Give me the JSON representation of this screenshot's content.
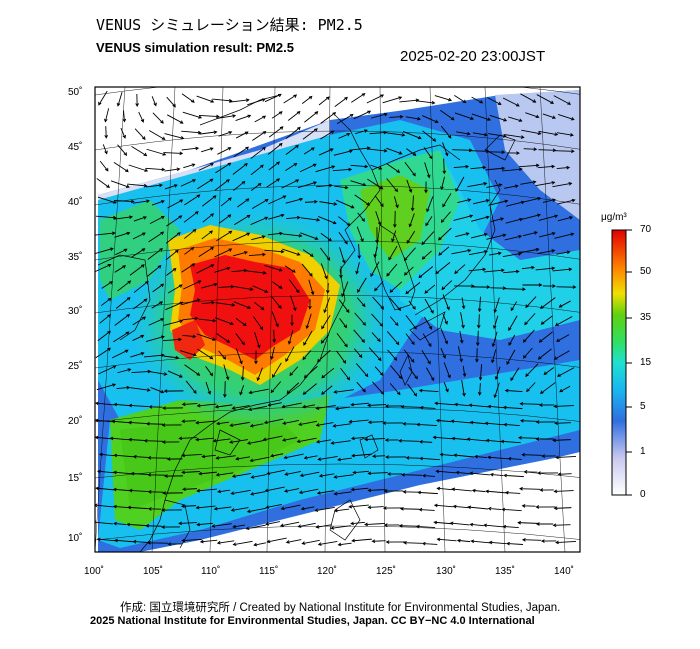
{
  "header": {
    "title_jp": "VENUS シミュレーション結果: PM2.5",
    "title_en": "VENUS simulation result: PM2.5",
    "timestamp": "2025-02-20 23:00JST"
  },
  "axes": {
    "lat_labels": [
      "50˚",
      "45˚",
      "40˚",
      "35˚",
      "30˚",
      "25˚",
      "20˚",
      "15˚",
      "10˚"
    ],
    "lon_labels": [
      "100˚",
      "105˚",
      "110˚",
      "115˚",
      "120˚",
      "125˚",
      "130˚",
      "135˚",
      "140˚"
    ]
  },
  "colorbar": {
    "unit": "μg/m³",
    "ticks": [
      "70",
      "50",
      "35",
      "15",
      "5",
      "1",
      "0"
    ],
    "colors": [
      "#e8e8f8",
      "#2f6fe0",
      "#18c8f0",
      "#28e0a0",
      "#48d018",
      "#f0e000",
      "#ff7000",
      "#f01010"
    ]
  },
  "credits": {
    "line1": "作成: 国立環境研究所 / Created by National Institute for Environmental Studies, Japan.",
    "line2": "2025 National Institute for Environmental Studies, Japan. CC BY−NC 4.0 International"
  }
}
